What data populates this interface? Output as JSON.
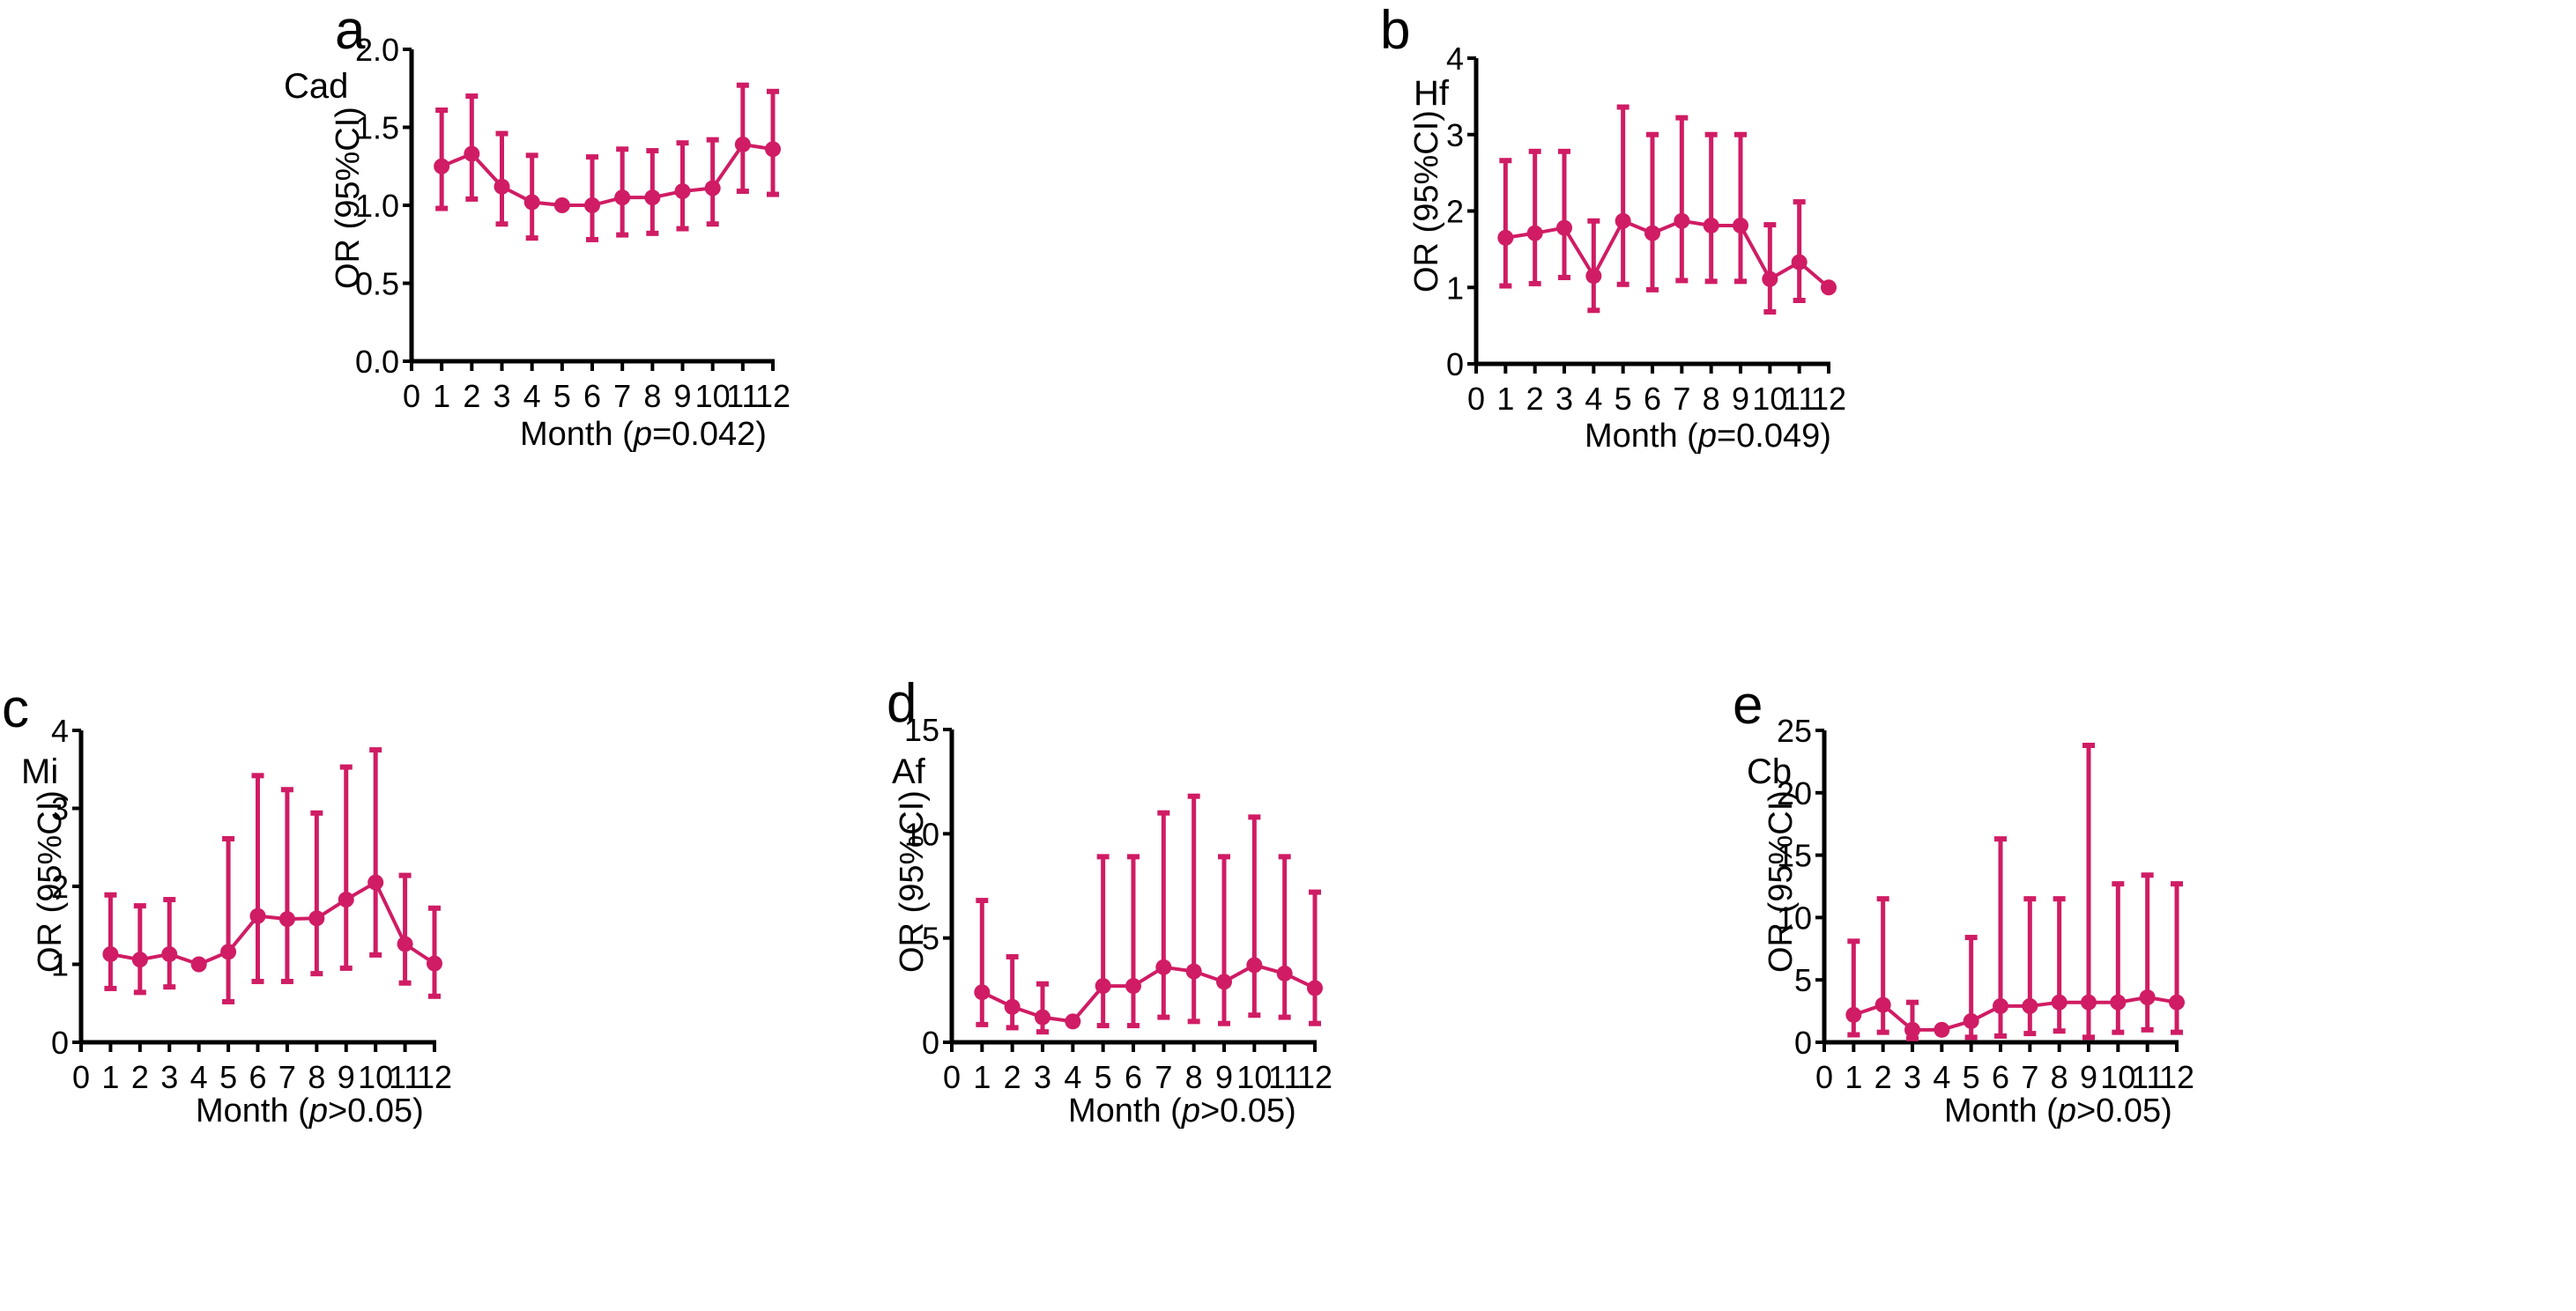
{
  "figure": {
    "series_color": "#D01C64",
    "axis_color": "#000000"
  },
  "chart_data": [
    {
      "type": "line",
      "panel": "a",
      "outcome": "Cad",
      "title": "",
      "xlabel_prefix": "Month (",
      "xlabel_p": "p",
      "xlabel_suffix": "=0.042)",
      "ylabel": "OR (95%CI)",
      "xlim": [
        0,
        12
      ],
      "ylim": [
        0,
        2.0
      ],
      "x_ticks": [
        "0",
        "1",
        "2",
        "3",
        "4",
        "5",
        "6",
        "7",
        "8",
        "9",
        "10",
        "11",
        "12"
      ],
      "y_ticks": [
        "0.0",
        "0.5",
        "1.0",
        "1.5",
        "2.0"
      ],
      "y_tick_values": [
        0,
        0.5,
        1.0,
        1.5,
        2.0
      ],
      "grid": false,
      "x": [
        1,
        2,
        3,
        4,
        5,
        6,
        7,
        8,
        9,
        10,
        11,
        12
      ],
      "series": [
        {
          "name": "OR",
          "values": [
            1.25,
            1.33,
            1.12,
            1.02,
            1.0,
            1.0,
            1.05,
            1.05,
            1.09,
            1.11,
            1.39,
            1.36
          ],
          "ci_lower": [
            0.98,
            1.04,
            0.88,
            0.79,
            null,
            0.78,
            0.81,
            0.82,
            0.85,
            0.88,
            1.09,
            1.07
          ],
          "ci_upper": [
            1.61,
            1.7,
            1.46,
            1.32,
            null,
            1.31,
            1.36,
            1.35,
            1.4,
            1.42,
            1.77,
            1.73
          ]
        }
      ]
    },
    {
      "type": "line",
      "panel": "b",
      "outcome": "Hf",
      "title": "",
      "xlabel_prefix": "Month (",
      "xlabel_p": "p",
      "xlabel_suffix": "=0.049)",
      "ylabel": "OR (95%CI)",
      "xlim": [
        0,
        12
      ],
      "ylim": [
        0,
        4
      ],
      "x_ticks": [
        "0",
        "1",
        "2",
        "3",
        "4",
        "5",
        "6",
        "7",
        "8",
        "9",
        "10",
        "11",
        "12"
      ],
      "y_ticks": [
        "0",
        "1",
        "2",
        "3",
        "4"
      ],
      "y_tick_values": [
        0,
        1,
        2,
        3,
        4
      ],
      "grid": false,
      "x": [
        1,
        2,
        3,
        4,
        5,
        6,
        7,
        8,
        9,
        10,
        11,
        12
      ],
      "series": [
        {
          "name": "OR",
          "values": [
            1.65,
            1.71,
            1.78,
            1.15,
            1.87,
            1.71,
            1.87,
            1.81,
            1.81,
            1.11,
            1.33,
            1.0
          ],
          "ci_lower": [
            1.02,
            1.05,
            1.13,
            0.7,
            1.04,
            0.97,
            1.09,
            1.08,
            1.08,
            0.68,
            0.83,
            null
          ],
          "ci_upper": [
            2.66,
            2.78,
            2.78,
            1.87,
            3.36,
            3.0,
            3.22,
            3.0,
            3.0,
            1.82,
            2.12,
            null
          ]
        }
      ]
    },
    {
      "type": "line",
      "panel": "c",
      "outcome": "Mi",
      "title": "",
      "xlabel_prefix": "Month (",
      "xlabel_p": "p",
      "xlabel_suffix": ">0.05)",
      "ylabel": "OR (95%CI)",
      "xlim": [
        0,
        12
      ],
      "ylim": [
        0,
        4
      ],
      "x_ticks": [
        "0",
        "1",
        "2",
        "3",
        "4",
        "5",
        "6",
        "7",
        "8",
        "9",
        "10",
        "11",
        "12"
      ],
      "y_ticks": [
        "0",
        "1",
        "2",
        "3",
        "4"
      ],
      "y_tick_values": [
        0,
        1,
        2,
        3,
        4
      ],
      "grid": false,
      "x": [
        1,
        2,
        3,
        4,
        5,
        6,
        7,
        8,
        9,
        10,
        11,
        12
      ],
      "series": [
        {
          "name": "OR",
          "values": [
            1.13,
            1.06,
            1.13,
            1.0,
            1.16,
            1.62,
            1.58,
            1.59,
            1.83,
            2.05,
            1.26,
            1.01
          ],
          "ci_lower": [
            0.69,
            0.64,
            0.71,
            null,
            0.52,
            0.78,
            0.78,
            0.88,
            0.95,
            1.12,
            0.76,
            0.59
          ],
          "ci_upper": [
            1.89,
            1.75,
            1.83,
            null,
            2.61,
            3.42,
            3.24,
            2.94,
            3.53,
            3.75,
            2.14,
            1.72
          ]
        }
      ]
    },
    {
      "type": "line",
      "panel": "d",
      "outcome": "Af",
      "title": "",
      "xlabel_prefix": "Month (",
      "xlabel_p": "p",
      "xlabel_suffix": ">0.05)",
      "ylabel": "OR (95%CI)",
      "xlim": [
        0,
        12
      ],
      "ylim": [
        0,
        15
      ],
      "x_ticks": [
        "0",
        "1",
        "2",
        "3",
        "4",
        "5",
        "6",
        "7",
        "8",
        "9",
        "10",
        "11",
        "12"
      ],
      "y_ticks": [
        "0",
        "5",
        "10",
        "15"
      ],
      "y_tick_values": [
        0,
        5,
        10,
        15
      ],
      "grid": false,
      "x": [
        1,
        2,
        3,
        4,
        5,
        6,
        7,
        8,
        9,
        10,
        11,
        12
      ],
      "series": [
        {
          "name": "OR",
          "values": [
            2.4,
            1.7,
            1.2,
            1.0,
            2.7,
            2.7,
            3.6,
            3.4,
            2.9,
            3.7,
            3.3,
            2.6
          ],
          "ci_lower": [
            0.85,
            0.7,
            0.5,
            null,
            0.8,
            0.8,
            1.2,
            1.0,
            0.9,
            1.3,
            1.2,
            0.9
          ],
          "ci_upper": [
            6.8,
            4.1,
            2.8,
            null,
            8.9,
            8.9,
            11.0,
            11.8,
            8.9,
            10.8,
            8.9,
            7.2
          ]
        }
      ]
    },
    {
      "type": "line",
      "panel": "e",
      "outcome": "Cb",
      "title": "",
      "xlabel_prefix": "Month (",
      "xlabel_p": "p",
      "xlabel_suffix": ">0.05)",
      "ylabel": "OR (95%CI)",
      "xlim": [
        0,
        12
      ],
      "ylim": [
        0,
        25
      ],
      "x_ticks": [
        "0",
        "1",
        "2",
        "3",
        "4",
        "5",
        "6",
        "7",
        "8",
        "9",
        "10",
        "11",
        "12"
      ],
      "y_ticks": [
        "0",
        "5",
        "10",
        "15",
        "20",
        "25"
      ],
      "y_tick_values": [
        0,
        5,
        10,
        15,
        20,
        25
      ],
      "grid": false,
      "x": [
        1,
        2,
        3,
        4,
        5,
        6,
        7,
        8,
        9,
        10,
        11,
        12
      ],
      "series": [
        {
          "name": "OR",
          "values": [
            2.2,
            3.0,
            1.0,
            1.0,
            1.7,
            2.9,
            2.9,
            3.2,
            3.2,
            3.2,
            3.6,
            3.2
          ],
          "ci_lower": [
            0.6,
            0.8,
            0.3,
            null,
            0.4,
            0.5,
            0.7,
            0.9,
            0.4,
            0.8,
            1.0,
            0.8
          ],
          "ci_upper": [
            8.1,
            11.5,
            3.2,
            null,
            8.4,
            16.3,
            11.5,
            11.5,
            23.8,
            12.7,
            13.4,
            12.7
          ]
        }
      ]
    }
  ]
}
